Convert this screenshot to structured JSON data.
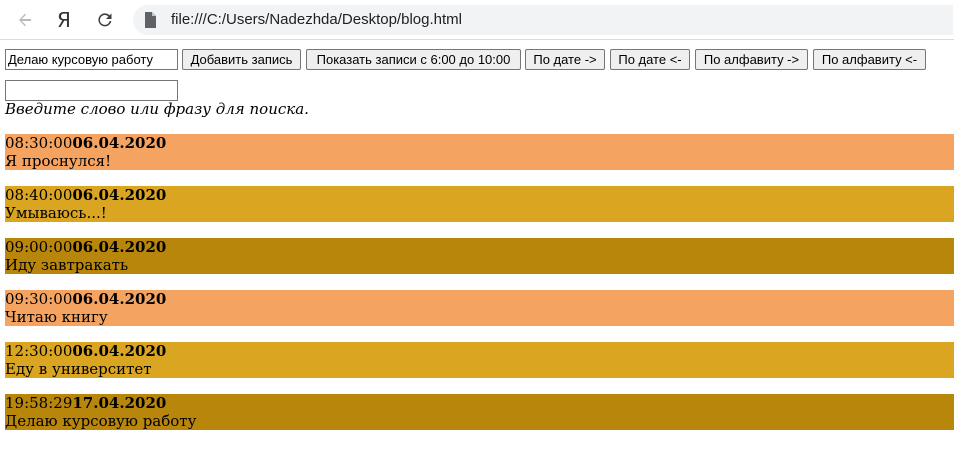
{
  "browser": {
    "url": "file:///C:/Users/Nadezhda/Desktop/blog.html",
    "yandex_glyph": "Я",
    "icons": [
      "back-arrow-icon",
      "yandex-icon",
      "reload-icon",
      "page-file-icon"
    ]
  },
  "toolbar": {
    "entry_input_value": "Делаю курсовую работу",
    "buttons": {
      "add": "Добавить запись",
      "show_range": "Показать записи с 6:00 до 10:00",
      "date_asc": "По дате ->",
      "date_desc": "По дате <-",
      "alpha_asc": "По алфавиту ->",
      "alpha_desc": "По алфавиту <-"
    }
  },
  "search": {
    "value": "",
    "hint": "Введите слово или фразу для поиска."
  },
  "colors": {
    "entry_1": "#f4a460",
    "entry_2": "#daa520",
    "entry_3": "#b8860b"
  },
  "entries": [
    {
      "time": "08:30:00",
      "date": "06.04.2020",
      "text": "Я проснулся!",
      "color": "#f4a460"
    },
    {
      "time": "08:40:00",
      "date": "06.04.2020",
      "text": "Умываюсь...!",
      "color": "#daa520"
    },
    {
      "time": "09:00:00",
      "date": "06.04.2020",
      "text": "Иду завтракать",
      "color": "#b8860b"
    },
    {
      "time": "09:30:00",
      "date": "06.04.2020",
      "text": "Читаю книгу",
      "color": "#f4a460"
    },
    {
      "time": "12:30:00",
      "date": "06.04.2020",
      "text": "Еду в университет",
      "color": "#daa520"
    },
    {
      "time": "19:58:29",
      "date": "17.04.2020",
      "text": "Делаю курсовую работу",
      "color": "#b8860b"
    }
  ]
}
